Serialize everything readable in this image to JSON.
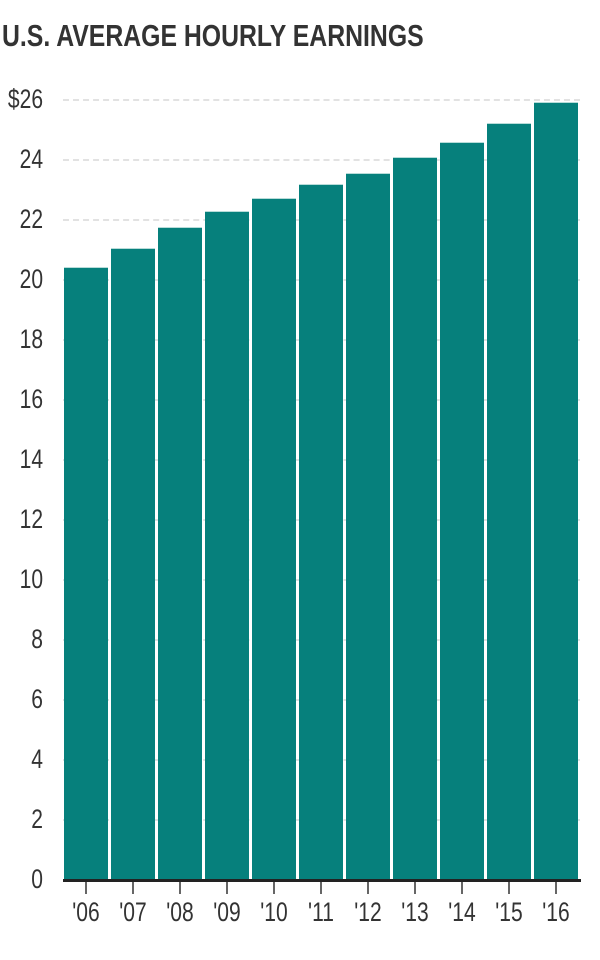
{
  "title": "U.S. AVERAGE HOURLY EARNINGS",
  "colors": {
    "bar": "#06807c",
    "text": "#333333",
    "grid": "#e2e2e2",
    "axis": "#222222"
  },
  "chart_data": {
    "type": "bar",
    "title": "U.S. AVERAGE HOURLY EARNINGS",
    "xlabel": "",
    "ylabel": "",
    "categories": [
      "'06",
      "'07",
      "'08",
      "'09",
      "'10",
      "'11",
      "'12",
      "'13",
      "'14",
      "'15",
      "'16"
    ],
    "values": [
      20.43,
      21.07,
      21.77,
      22.31,
      22.74,
      23.21,
      23.58,
      24.1,
      24.59,
      25.22,
      25.92
    ],
    "ylim": [
      0,
      26
    ],
    "yticks": [
      0,
      2,
      4,
      6,
      8,
      10,
      12,
      14,
      16,
      18,
      20,
      22,
      24,
      26
    ],
    "ytick_labels": [
      "0",
      "2",
      "4",
      "6",
      "8",
      "10",
      "12",
      "14",
      "16",
      "18",
      "20",
      "22",
      "24",
      "$26"
    ],
    "grid": true,
    "legend": null
  }
}
